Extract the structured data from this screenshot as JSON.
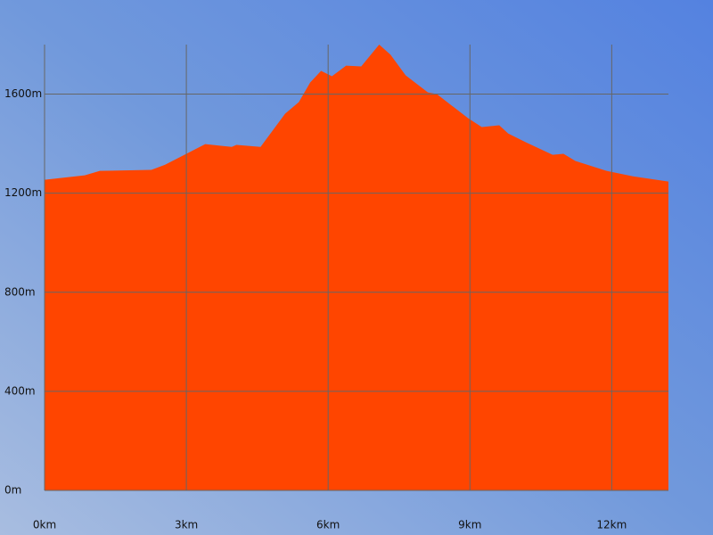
{
  "chart_data": {
    "type": "area",
    "x": [
      0,
      0.85,
      1.17,
      2.26,
      2.55,
      3.4,
      3.96,
      4.06,
      4.57,
      5.09,
      5.38,
      5.62,
      5.85,
      6.08,
      6.38,
      6.7,
      7.08,
      7.32,
      7.64,
      8.11,
      8.3,
      8.96,
      9.25,
      9.62,
      9.81,
      10.19,
      10.75,
      10.98,
      11.23,
      11.89,
      12.45,
      13.2
    ],
    "values": [
      1254,
      1272,
      1290,
      1294,
      1315,
      1398,
      1387,
      1395,
      1387,
      1521,
      1568,
      1647,
      1694,
      1672,
      1715,
      1712,
      1800,
      1759,
      1676,
      1607,
      1600,
      1503,
      1467,
      1474,
      1441,
      1405,
      1355,
      1359,
      1330,
      1290,
      1268,
      1247
    ],
    "color": "#ff4500",
    "xlim": [
      0,
      13.2
    ],
    "ylim": [
      0,
      1800
    ],
    "xticks": [
      {
        "value": 0,
        "label": "0km"
      },
      {
        "value": 3,
        "label": "3km"
      },
      {
        "value": 6,
        "label": "6km"
      },
      {
        "value": 9,
        "label": "9km"
      },
      {
        "value": 12,
        "label": "12km"
      }
    ],
    "yticks": [
      {
        "value": 0,
        "label": "0m"
      },
      {
        "value": 400,
        "label": "400m"
      },
      {
        "value": 800,
        "label": "800m"
      },
      {
        "value": 1200,
        "label": "1200m"
      },
      {
        "value": 1600,
        "label": "1600m"
      }
    ],
    "grid": true
  }
}
